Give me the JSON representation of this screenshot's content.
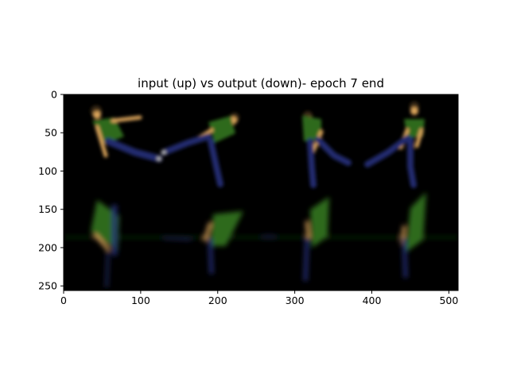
{
  "chart_data": {
    "type": "image",
    "title": "input (up) vs output (down)- epoch 7 end",
    "xlabel": "",
    "ylabel": "",
    "xlim": [
      0,
      512
    ],
    "ylim": [
      256,
      0
    ],
    "x_ticks": [
      0,
      100,
      200,
      300,
      400,
      500
    ],
    "y_ticks": [
      0,
      50,
      100,
      150,
      200,
      250
    ],
    "image_content": {
      "top_row": "input frames",
      "bottom_row": "output frames",
      "frames": 4
    },
    "colors": {
      "background": "#000000",
      "shirt": "#2e6b1e",
      "pants": "#232a6e",
      "skin": "#d9a35a",
      "hair": "#3a2a18"
    }
  }
}
